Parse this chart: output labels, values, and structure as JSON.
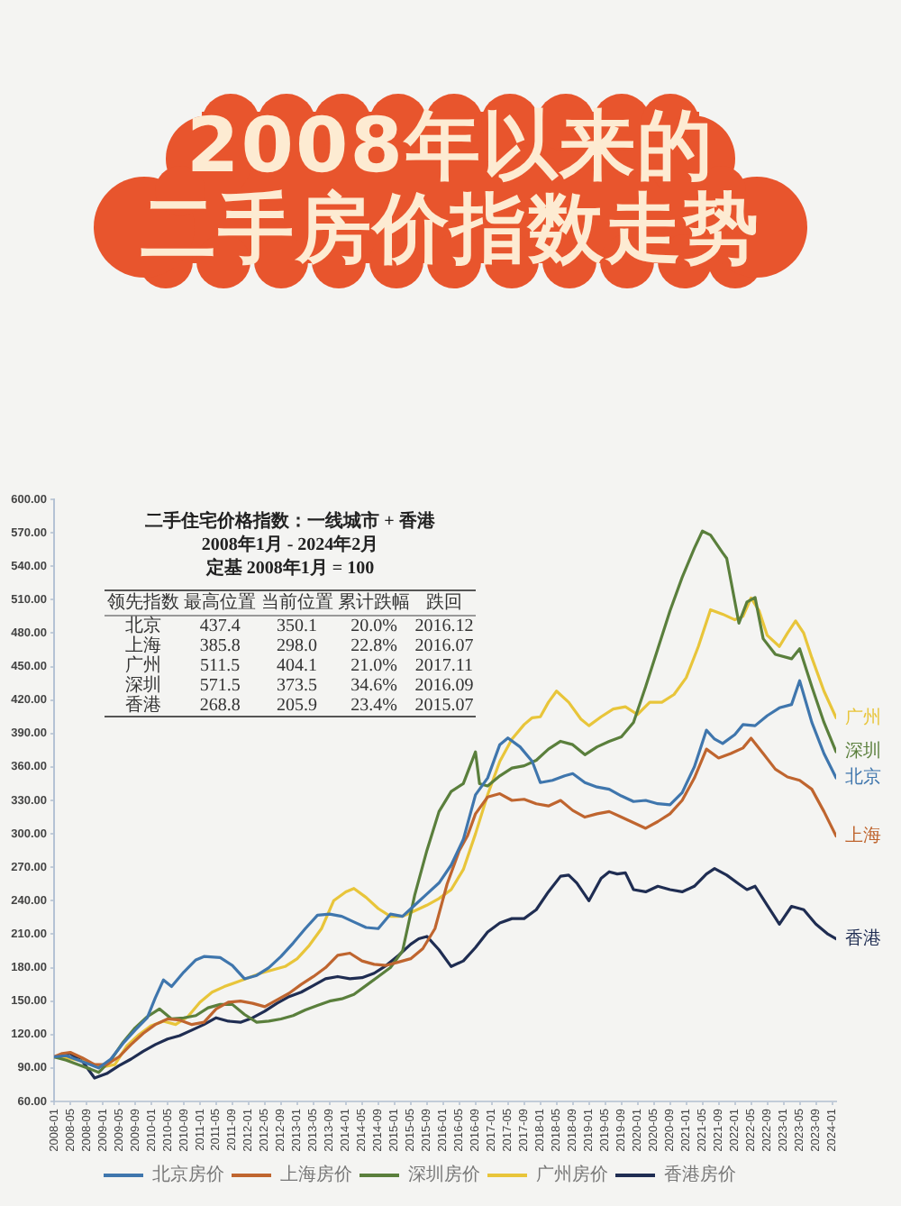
{
  "chart_data": {
    "type": "line",
    "title": "2008年以来的",
    "subtitle": "二手房价指数走势",
    "annotations": [
      "二手住宅价格指数：一线城市 + 香港",
      "2008年1月 - 2024年2月",
      "定基 2008年1月 = 100",
      "领先指数",
      "最高位置",
      "当前位置",
      "累计跌幅",
      "跌回",
      "北京",
      "437.4",
      "350.1",
      "20.0%",
      "2016.12",
      "上海",
      "385.8",
      "298.0",
      "22.8%",
      "2016.07",
      "广州",
      "511.5",
      "404.1",
      "21.0%",
      "2017.11",
      "深圳",
      "571.5",
      "373.5",
      "34.6%",
      "2016.09",
      "香港",
      "268.8",
      "205.9",
      "23.4%",
      "2015.07",
      {
        "text": "广州",
        "x": "2024-02",
        "y": 404.1
      },
      {
        "text": "深圳",
        "x": "2024-02",
        "y": 373.5
      },
      {
        "text": "北京",
        "x": "2024-02",
        "y": 350.1
      },
      {
        "text": "上海",
        "x": "2024-02",
        "y": 298
      },
      {
        "text": "香港",
        "x": "2024-02",
        "y": 205.9
      }
    ],
    "series": [
      {
        "name": "北京房价",
        "color": "#3f76ad",
        "x": [
          "2008-01",
          "2008-04",
          "2008-07",
          "2008-10",
          "2008-12",
          "2009-03",
          "2009-06",
          "2009-09",
          "2009-12",
          "2010-02",
          "2010-04",
          "2010-06",
          "2010-09",
          "2010-12",
          "2011-02",
          "2011-06",
          "2011-09",
          "2011-12",
          "2012-03",
          "2012-06",
          "2012-09",
          "2012-12",
          "2013-03",
          "2013-06",
          "2013-09",
          "2013-12",
          "2014-03",
          "2014-06",
          "2014-09",
          "2014-12",
          "2015-03",
          "2015-06",
          "2015-09",
          "2015-12",
          "2016-03",
          "2016-06",
          "2016-09",
          "2016-12",
          "2017-03",
          "2017-05",
          "2017-08",
          "2017-11",
          "2018-01",
          "2018-04",
          "2018-07",
          "2018-09",
          "2018-12",
          "2019-03",
          "2019-06",
          "2019-09",
          "2019-12",
          "2020-03",
          "2020-06",
          "2020-09",
          "2020-12",
          "2021-03",
          "2021-06",
          "2021-08",
          "2021-10",
          "2022-01",
          "2022-03",
          "2022-06",
          "2022-09",
          "2022-12",
          "2023-03",
          "2023-05",
          "2023-08",
          "2023-11",
          "2024-02"
        ],
        "values": [
          100,
          101,
          97,
          93,
          90,
          98,
          112,
          124,
          135,
          153,
          169,
          163,
          176,
          187,
          190,
          189,
          182,
          170,
          173,
          180,
          190,
          202,
          215,
          227,
          228,
          226,
          221,
          216,
          215,
          228,
          226,
          236,
          246,
          256,
          272,
          295,
          335,
          350.1,
          380,
          386,
          378,
          365,
          346,
          348,
          352,
          354,
          346,
          342,
          340,
          334,
          329,
          330,
          327,
          326,
          337,
          360,
          393,
          385,
          381,
          389,
          398,
          397,
          406,
          413,
          416,
          437.4,
          400,
          372,
          350.1
        ]
      },
      {
        "name": "上海房价",
        "color": "#bf652f",
        "x": [
          "2008-01",
          "2008-03",
          "2008-05",
          "2008-08",
          "2008-11",
          "2009-02",
          "2009-05",
          "2009-08",
          "2009-11",
          "2010-02",
          "2010-05",
          "2010-08",
          "2010-11",
          "2011-02",
          "2011-05",
          "2011-08",
          "2011-11",
          "2012-02",
          "2012-05",
          "2012-08",
          "2012-11",
          "2013-02",
          "2013-05",
          "2013-08",
          "2013-11",
          "2014-02",
          "2014-05",
          "2014-08",
          "2014-11",
          "2015-02",
          "2015-05",
          "2015-08",
          "2015-11",
          "2016-02",
          "2016-05",
          "2016-07",
          "2016-09",
          "2016-12",
          "2017-03",
          "2017-06",
          "2017-09",
          "2017-12",
          "2018-03",
          "2018-06",
          "2018-09",
          "2018-12",
          "2019-03",
          "2019-06",
          "2019-09",
          "2019-12",
          "2020-03",
          "2020-06",
          "2020-09",
          "2020-12",
          "2021-03",
          "2021-06",
          "2021-09",
          "2021-12",
          "2022-03",
          "2022-05",
          "2022-08",
          "2022-11",
          "2023-02",
          "2023-05",
          "2023-08",
          "2023-11",
          "2024-02"
        ],
        "values": [
          100,
          103,
          104,
          99,
          93,
          93,
          100,
          111,
          121,
          129,
          134,
          133,
          129,
          131,
          143,
          149,
          150,
          148,
          145,
          151,
          157,
          165,
          172,
          180,
          191,
          193,
          186,
          183,
          182,
          185,
          188,
          197,
          215,
          255,
          285,
          298,
          318,
          333,
          336,
          330,
          331,
          327,
          325,
          330,
          321,
          315,
          318,
          320,
          315,
          310,
          305,
          311,
          318,
          330,
          350,
          376,
          368,
          372,
          377,
          385.8,
          372,
          358,
          351,
          348,
          340,
          320,
          298
        ]
      },
      {
        "name": "深圳房价",
        "color": "#5a7f3c",
        "x": [
          "2008-01",
          "2008-04",
          "2008-07",
          "2008-10",
          "2008-12",
          "2009-03",
          "2009-06",
          "2009-09",
          "2009-12",
          "2010-03",
          "2010-06",
          "2010-09",
          "2010-12",
          "2011-03",
          "2011-06",
          "2011-09",
          "2011-12",
          "2012-03",
          "2012-06",
          "2012-09",
          "2012-12",
          "2013-03",
          "2013-06",
          "2013-09",
          "2013-12",
          "2014-03",
          "2014-06",
          "2014-09",
          "2014-12",
          "2015-03",
          "2015-06",
          "2015-09",
          "2015-12",
          "2016-03",
          "2016-06",
          "2016-09",
          "2016-10",
          "2016-12",
          "2017-03",
          "2017-06",
          "2017-09",
          "2017-12",
          "2018-03",
          "2018-06",
          "2018-09",
          "2018-12",
          "2019-03",
          "2019-06",
          "2019-09",
          "2019-12",
          "2020-03",
          "2020-06",
          "2020-09",
          "2020-12",
          "2021-03",
          "2021-05",
          "2021-07",
          "2021-10",
          "2021-11",
          "2022-02",
          "2022-04",
          "2022-06",
          "2022-08",
          "2022-11",
          "2023-03",
          "2023-05",
          "2023-08",
          "2023-11",
          "2024-02"
        ],
        "values": [
          100,
          97,
          93,
          89,
          86,
          97,
          113,
          126,
          136,
          143,
          134,
          135,
          137,
          144,
          147,
          147,
          138,
          131,
          132,
          134,
          137,
          142,
          146,
          150,
          152,
          156,
          164,
          172,
          180,
          195,
          245,
          285,
          320,
          338,
          345,
          373.5,
          345,
          343,
          352,
          359,
          361,
          366,
          376,
          383,
          380,
          371,
          378,
          383,
          387,
          400,
          432,
          466,
          500,
          530,
          556,
          571.5,
          568,
          552,
          547,
          489,
          508,
          512,
          475,
          461,
          457,
          466,
          432,
          400,
          373.5
        ]
      },
      {
        "name": "广州房价",
        "color": "#e8c53a",
        "x": [
          "2008-01",
          "2008-04",
          "2008-07",
          "2008-10",
          "2009-01",
          "2009-04",
          "2009-07",
          "2009-10",
          "2010-01",
          "2010-04",
          "2010-07",
          "2010-10",
          "2011-01",
          "2011-04",
          "2011-07",
          "2011-10",
          "2012-01",
          "2012-04",
          "2012-07",
          "2012-10",
          "2013-01",
          "2013-04",
          "2013-07",
          "2013-10",
          "2014-01",
          "2014-03",
          "2014-06",
          "2014-09",
          "2014-12",
          "2015-03",
          "2015-06",
          "2015-09",
          "2015-12",
          "2016-03",
          "2016-06",
          "2016-09",
          "2016-12",
          "2017-03",
          "2017-06",
          "2017-09",
          "2017-11",
          "2018-01",
          "2018-03",
          "2018-05",
          "2018-08",
          "2018-11",
          "2019-01",
          "2019-04",
          "2019-07",
          "2019-10",
          "2020-01",
          "2020-04",
          "2020-07",
          "2020-10",
          "2021-01",
          "2021-04",
          "2021-07",
          "2021-10",
          "2022-01",
          "2022-03",
          "2022-05",
          "2022-07",
          "2022-09",
          "2022-12",
          "2023-02",
          "2023-04",
          "2023-06",
          "2023-08",
          "2023-11",
          "2024-02"
        ],
        "values": [
          100,
          99,
          97,
          94,
          91,
          93,
          110,
          120,
          128,
          132,
          129,
          136,
          149,
          158,
          163,
          167,
          171,
          175,
          178,
          181,
          188,
          200,
          215,
          240,
          248,
          251,
          243,
          233,
          226,
          226,
          231,
          236,
          242,
          250,
          268,
          300,
          335,
          365,
          385,
          398,
          404.1,
          405,
          418,
          428,
          418,
          403,
          397,
          405,
          412,
          414,
          407,
          418,
          418,
          425,
          440,
          468,
          501,
          497,
          492,
          495,
          511.5,
          500,
          478,
          468,
          480,
          491,
          480,
          458,
          428,
          404.1
        ]
      },
      {
        "name": "香港房价",
        "color": "#1f2d52",
        "x": [
          "2008-01",
          "2008-05",
          "2008-08",
          "2008-11",
          "2009-02",
          "2009-05",
          "2009-08",
          "2009-11",
          "2010-02",
          "2010-05",
          "2010-08",
          "2010-11",
          "2011-02",
          "2011-05",
          "2011-08",
          "2011-11",
          "2012-02",
          "2012-05",
          "2012-08",
          "2012-11",
          "2013-02",
          "2013-05",
          "2013-08",
          "2013-11",
          "2014-02",
          "2014-05",
          "2014-08",
          "2014-11",
          "2015-02",
          "2015-05",
          "2015-07",
          "2015-09",
          "2015-12",
          "2016-03",
          "2016-06",
          "2016-09",
          "2016-12",
          "2017-03",
          "2017-06",
          "2017-09",
          "2017-12",
          "2018-03",
          "2018-06",
          "2018-08",
          "2018-10",
          "2019-01",
          "2019-04",
          "2019-06",
          "2019-08",
          "2019-10",
          "2019-12",
          "2020-03",
          "2020-06",
          "2020-09",
          "2020-12",
          "2021-03",
          "2021-06",
          "2021-08",
          "2021-11",
          "2022-02",
          "2022-04",
          "2022-06",
          "2022-09",
          "2022-12",
          "2023-03",
          "2023-06",
          "2023-09",
          "2023-12",
          "2024-02"
        ],
        "values": [
          100,
          103,
          96,
          81,
          85,
          92,
          98,
          105,
          111,
          116,
          119,
          124,
          129,
          135,
          132,
          131,
          135,
          141,
          148,
          154,
          158,
          164,
          170,
          172,
          170,
          171,
          175,
          182,
          191,
          201,
          205.9,
          208,
          196,
          181,
          186,
          198,
          212,
          220,
          224,
          224,
          232,
          248,
          262,
          263,
          256,
          240,
          260,
          266,
          264,
          265,
          250,
          248,
          253,
          250,
          248,
          253,
          264,
          268.8,
          263,
          255,
          250,
          253,
          236,
          219,
          235,
          232,
          219,
          210,
          205.9
        ]
      }
    ],
    "xlim": [
      "2008-01",
      "2024-02"
    ],
    "xticks": [
      "2008-01",
      "2008-05",
      "2008-09",
      "2009-01",
      "2009-05",
      "2009-09",
      "2010-01",
      "2010-05",
      "2010-09",
      "2011-01",
      "2011-05",
      "2011-09",
      "2012-01",
      "2012-05",
      "2012-09",
      "2013-01",
      "2013-05",
      "2013-09",
      "2014-01",
      "2014-05",
      "2014-09",
      "2015-01",
      "2015-05",
      "2015-09",
      "2016-01",
      "2016-05",
      "2016-09",
      "2017-01",
      "2017-05",
      "2017-09",
      "2018-01",
      "2018-05",
      "2018-09",
      "2019-01",
      "2019-05",
      "2019-09",
      "2020-01",
      "2020-05",
      "2020-09",
      "2021-01",
      "2021-05",
      "2021-09",
      "2022-01",
      "2022-05",
      "2022-09",
      "2023-01",
      "2023-05",
      "2023-09",
      "2024-01"
    ],
    "ylim": [
      60,
      600
    ],
    "yticks": [
      {
        "value": 60,
        "label": "60.00"
      },
      {
        "value": 90,
        "label": "90.00"
      },
      {
        "value": 120,
        "label": "120.00"
      },
      {
        "value": 150,
        "label": "150.00"
      },
      {
        "value": 180,
        "label": "180.00"
      },
      {
        "value": 210,
        "label": "210.00"
      },
      {
        "value": 240,
        "label": "240.00"
      },
      {
        "value": 270,
        "label": "270.00"
      },
      {
        "value": 300,
        "label": "300.00"
      },
      {
        "value": 330,
        "label": "330.00"
      },
      {
        "value": 360,
        "label": "360.00"
      },
      {
        "value": 390,
        "label": "390.00"
      },
      {
        "value": 420,
        "label": "420.00"
      },
      {
        "value": 450,
        "label": "450.00"
      },
      {
        "value": 480,
        "label": "480.00"
      },
      {
        "value": 510,
        "label": "510.00"
      },
      {
        "value": 540,
        "label": "540.00"
      },
      {
        "value": 570,
        "label": "570.00"
      },
      {
        "value": 600,
        "label": "600.00"
      }
    ],
    "grid": false,
    "legend": "bottom"
  }
}
